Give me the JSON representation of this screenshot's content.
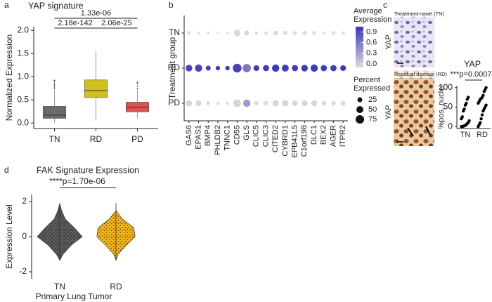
{
  "chart_data": [
    {
      "panel": "a",
      "type": "box",
      "title": "YAP signature",
      "y_label": "Normalized Expression",
      "categories": [
        "TN",
        "RD",
        "PD"
      ],
      "colors": [
        "#6a6a6a",
        "#d2c01f",
        "#d9534f"
      ],
      "boxes": [
        {
          "whislo": 0.0,
          "q1": 0.1,
          "med": 0.17,
          "q3": 0.36,
          "whishi": 0.72,
          "fliers": [
            0.75,
            0.78,
            0.82,
            0.86,
            0.9,
            0.92
          ]
        },
        {
          "whislo": 0.05,
          "q1": 0.55,
          "med": 0.7,
          "q3": 0.93,
          "whishi": 1.55,
          "fliers": []
        },
        {
          "whislo": 0.1,
          "q1": 0.24,
          "med": 0.34,
          "q3": 0.45,
          "whishi": 0.72,
          "fliers": [
            0.75,
            0.8,
            0.85,
            0.88
          ]
        }
      ],
      "ylim": [
        -0.12,
        2.08
      ],
      "yticks": [
        {
          "value": 0,
          "label": "0.0"
        },
        0.5,
        {
          "value": 1,
          "label": "1.0"
        },
        1.5,
        {
          "value": 2,
          "label": "2.0"
        }
      ],
      "comparisons": [
        {
          "groups": [
            "TN",
            "PD"
          ],
          "label": "1.33e-06"
        },
        {
          "groups": [
            "TN",
            "RD"
          ],
          "label": "2.18e-142"
        },
        {
          "groups": [
            "RD",
            "PD"
          ],
          "label": "2.06e-25"
        }
      ]
    },
    {
      "panel": "b",
      "type": "dot",
      "y_label": "Treatment group",
      "categories": [
        "GAS6",
        "EPAS1",
        "BMP4",
        "PHLDB2",
        "TNNC1",
        "CD55",
        "GLS",
        "CLIC5",
        "CLIC3",
        "CITED2",
        "CYBRD1",
        "EPB41L5",
        "C1orf198",
        "DLC1",
        "BEX2",
        "AGER",
        "ITPR2"
      ],
      "series": [
        {
          "name": "TN",
          "values": [
            -0.1,
            -0.1,
            -0.1,
            -0.1,
            -0.1,
            -0.08,
            -0.05,
            -0.1,
            -0.1,
            -0.1,
            -0.1,
            -0.1,
            -0.1,
            -0.1,
            -0.1,
            -0.1,
            -0.1
          ],
          "percent": [
            15,
            10,
            8,
            5,
            5,
            45,
            25,
            10,
            12,
            25,
            20,
            15,
            20,
            15,
            10,
            15,
            12
          ]
        },
        {
          "name": "RD",
          "values": [
            0.95,
            0.95,
            1.0,
            1.0,
            1.0,
            0.95,
            0.6,
            1.0,
            1.0,
            1.0,
            1.0,
            1.0,
            1.0,
            1.0,
            1.0,
            1.0,
            1.0
          ],
          "percent": [
            45,
            55,
            25,
            20,
            20,
            80,
            70,
            35,
            40,
            55,
            50,
            40,
            45,
            55,
            40,
            40,
            35
          ]
        },
        {
          "name": "PD",
          "values": [
            -0.05,
            -0.05,
            -0.1,
            -0.1,
            -0.1,
            -0.05,
            0.35,
            -0.1,
            -0.1,
            -0.05,
            -0.05,
            -0.05,
            -0.05,
            -0.05,
            -0.1,
            -0.1,
            -0.1
          ],
          "percent": [
            40,
            35,
            15,
            10,
            10,
            60,
            55,
            20,
            25,
            40,
            40,
            30,
            35,
            35,
            25,
            20,
            25
          ]
        }
      ],
      "color_title": [
        "Average",
        "Expression"
      ],
      "clim": [
        -0.1,
        1.05
      ],
      "cticks": [
        {
          "value": 0,
          "label": "0.0"
        },
        0.3,
        0.6,
        0.9
      ],
      "colormap": [
        "#dcdcdc",
        "#3a34b2"
      ],
      "size_title": [
        "Percent",
        "Expressed"
      ],
      "size_ticks": [
        25,
        50,
        75
      ]
    },
    {
      "panel": "c",
      "type": "strip",
      "title": "YAP",
      "y_label": "%pos. nuclei",
      "annotation": "***p=0.0007",
      "categories": [
        "TN",
        "RD"
      ],
      "color": "#000000",
      "values": [
        [
          0,
          0,
          1,
          2,
          3,
          5,
          8,
          10,
          15,
          20,
          25,
          40,
          45,
          55,
          60,
          70,
          75
        ],
        [
          0,
          5,
          10,
          20,
          30,
          40,
          45,
          50,
          55,
          60,
          65,
          70,
          72,
          75,
          80,
          90,
          95,
          100
        ]
      ],
      "ylim": [
        -5,
        105
      ],
      "yticks": [
        0,
        50,
        100
      ]
    },
    {
      "panel": "d",
      "type": "violin",
      "title": "FAK Signature Expression",
      "y_label": "Expression Level",
      "x_label": "Primary Lung Tumor",
      "annotation": "****p=1.70e-06",
      "categories": [
        "TN",
        "RD"
      ],
      "colors": [
        "#5a5a5a",
        "#f2b31b"
      ],
      "ylim": [
        -2.4,
        2.4
      ],
      "yticks": [
        -2,
        0,
        2
      ],
      "density_y": [
        -1.35,
        -1,
        -0.5,
        0,
        0.5,
        1,
        1.5,
        1.9
      ],
      "density": [
        [
          0,
          0.15,
          0.5,
          1,
          0.65,
          0.25,
          0.08,
          0
        ],
        [
          0,
          0.1,
          0.45,
          0.85,
          0.8,
          0.3,
          0,
          0
        ]
      ]
    }
  ],
  "images": [
    {
      "caption": "Treatment naive (TN)",
      "stain": "YAP"
    },
    {
      "caption": "Residual disease (RD)",
      "stain": "YAP"
    }
  ]
}
